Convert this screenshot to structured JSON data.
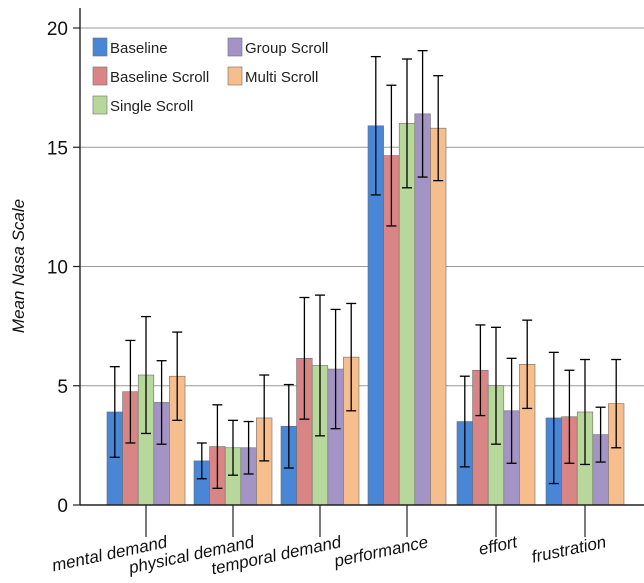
{
  "chart_data": {
    "type": "bar",
    "title": "",
    "xlabel": "",
    "ylabel": "Mean Nasa Scale",
    "ylim": [
      0,
      20
    ],
    "yticks": [
      0,
      5,
      10,
      15,
      20
    ],
    "grid": "horizontal",
    "legend_position": "top-left",
    "categories": [
      "mental demand",
      "physical demand",
      "temporal demand",
      "performance",
      "effort",
      "frustration"
    ],
    "series": [
      {
        "name": "Baseline",
        "color": "#4a86d6",
        "values": [
          3.9,
          1.85,
          3.3,
          15.9,
          3.5,
          3.65
        ],
        "errors": [
          1.9,
          0.75,
          1.75,
          2.9,
          1.9,
          2.75
        ]
      },
      {
        "name": "Baseline Scroll",
        "color": "#d98585",
        "values": [
          4.75,
          2.45,
          6.15,
          14.65,
          5.65,
          3.7
        ],
        "errors": [
          2.15,
          1.75,
          2.55,
          2.95,
          1.9,
          1.95
        ]
      },
      {
        "name": "Single Scroll",
        "color": "#b7d89a",
        "values": [
          5.45,
          2.4,
          5.85,
          16.0,
          5.0,
          3.9
        ],
        "errors": [
          2.45,
          1.15,
          2.95,
          2.7,
          2.45,
          2.2
        ]
      },
      {
        "name": "Group Scroll",
        "color": "#a494c6",
        "values": [
          4.3,
          2.4,
          5.7,
          16.4,
          3.95,
          2.95
        ],
        "errors": [
          1.75,
          1.1,
          2.5,
          2.65,
          2.2,
          1.15
        ]
      },
      {
        "name": "Multi Scroll",
        "color": "#f6be8c",
        "values": [
          5.4,
          3.65,
          6.2,
          15.8,
          5.9,
          4.25
        ],
        "errors": [
          1.85,
          1.8,
          2.25,
          2.2,
          1.85,
          1.85
        ]
      }
    ]
  }
}
